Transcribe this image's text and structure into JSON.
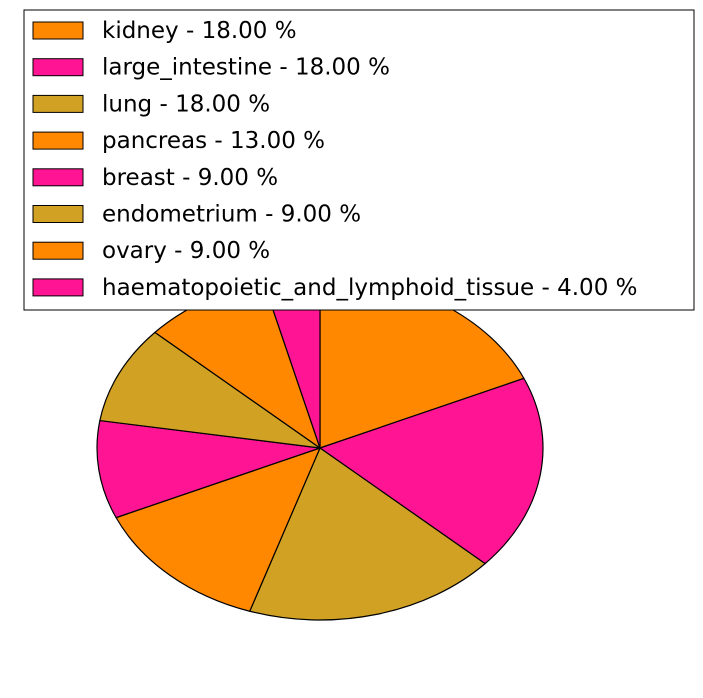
{
  "chart_data": {
    "type": "pie",
    "legend_position": "top",
    "slices": [
      {
        "label": "kidney",
        "value": 18.0,
        "color": "#FF8800",
        "legend_text": "kidney - 18.00 %"
      },
      {
        "label": "large_intestine",
        "value": 18.0,
        "color": "#FF1493",
        "legend_text": "large_intestine - 18.00 %"
      },
      {
        "label": "lung",
        "value": 18.0,
        "color": "#D1A124",
        "legend_text": "lung - 18.00 %"
      },
      {
        "label": "pancreas",
        "value": 13.0,
        "color": "#FF8800",
        "legend_text": "pancreas - 13.00 %"
      },
      {
        "label": "breast",
        "value": 9.0,
        "color": "#FF1493",
        "legend_text": "breast - 9.00 %"
      },
      {
        "label": "endometrium",
        "value": 9.0,
        "color": "#D1A124",
        "legend_text": "endometrium - 9.00 %"
      },
      {
        "label": "ovary",
        "value": 9.0,
        "color": "#FF8800",
        "legend_text": "ovary - 9.00 %"
      },
      {
        "label": "haematopoietic_and_lymphoid_tissue",
        "value": 4.0,
        "color": "#FF1493",
        "legend_text": "haematopoietic_and_lymphoid_tissue - 4.00 %"
      }
    ]
  }
}
